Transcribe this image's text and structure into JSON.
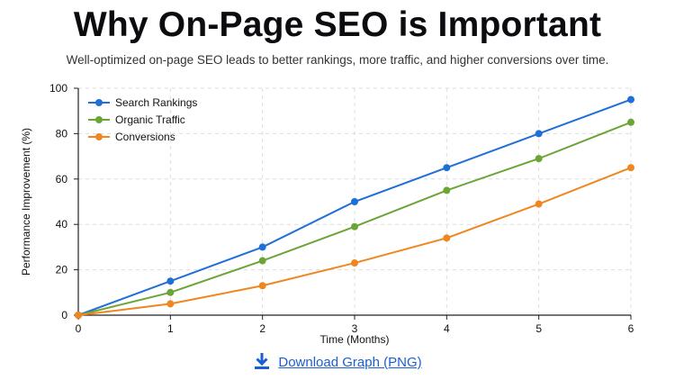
{
  "header": {
    "title": "Why On-Page SEO is Important",
    "subtitle": "Well-optimized on-page SEO leads to better rankings, more traffic, and higher conversions over time."
  },
  "download": {
    "label": "Download Graph (PNG)",
    "icon": "download-icon",
    "color": "#1a5fd0"
  },
  "chart_data": {
    "type": "line",
    "x": [
      0,
      1,
      2,
      3,
      4,
      5,
      6
    ],
    "xlabel": "Time (Months)",
    "ylabel": "Performance Improvement (%)",
    "xlim": [
      0,
      6
    ],
    "ylim": [
      0,
      100
    ],
    "yticks": [
      0,
      20,
      40,
      60,
      80,
      100
    ],
    "xticks": [
      0,
      1,
      2,
      3,
      4,
      5,
      6
    ],
    "grid": true,
    "legend_position": "top-left",
    "series": [
      {
        "name": "Search Rankings",
        "color": "#1f6fd6",
        "values": [
          0,
          15,
          30,
          50,
          65,
          80,
          95
        ]
      },
      {
        "name": "Organic Traffic",
        "color": "#6aa535",
        "values": [
          0,
          10,
          24,
          39,
          55,
          69,
          85
        ]
      },
      {
        "name": "Conversions",
        "color": "#f0861f",
        "values": [
          0,
          5,
          13,
          23,
          34,
          49,
          65
        ]
      }
    ]
  }
}
